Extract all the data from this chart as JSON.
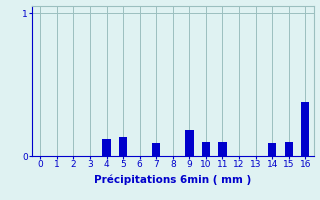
{
  "categories": [
    0,
    1,
    2,
    3,
    4,
    5,
    6,
    7,
    8,
    9,
    10,
    11,
    12,
    13,
    14,
    15,
    16
  ],
  "values": [
    0,
    0,
    0,
    0,
    0.12,
    0.13,
    0,
    0.09,
    0,
    0.18,
    0.1,
    0.1,
    0,
    0,
    0.09,
    0.1,
    0.38
  ],
  "bar_color": "#0000cc",
  "background_color": "#dff2f2",
  "grid_color": "#9bbfbf",
  "axis_color": "#0000cc",
  "xlabel": "Précipitations 6min ( mm )",
  "yticks": [
    0,
    1
  ],
  "ylim": [
    0,
    1.05
  ],
  "xlim": [
    -0.5,
    16.5
  ],
  "xlabel_fontsize": 7.5,
  "tick_fontsize": 6.5,
  "bar_width": 0.5
}
